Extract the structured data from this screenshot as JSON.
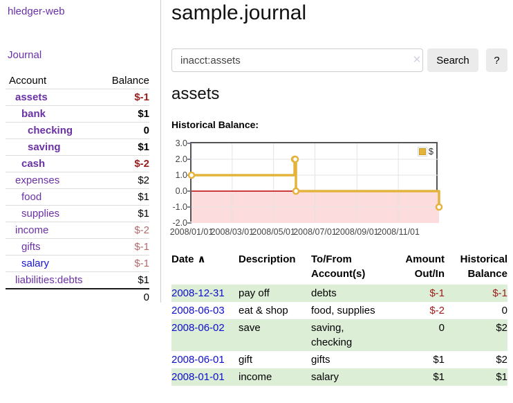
{
  "app": {
    "title": "hledger-web"
  },
  "sidebar": {
    "journal_link": "Journal",
    "table": {
      "headers": {
        "account": "Account",
        "balance": "Balance"
      },
      "accounts": [
        {
          "name": "assets",
          "balance": "$-1",
          "depth": 1
        },
        {
          "name": "bank",
          "balance": "$1",
          "depth": 2
        },
        {
          "name": "checking",
          "balance": "0",
          "depth": 3
        },
        {
          "name": "saving",
          "balance": "$1",
          "depth": 3
        },
        {
          "name": "cash",
          "balance": "$-2",
          "depth": 2
        },
        {
          "name": "expenses",
          "balance": "$2",
          "depth": 1
        },
        {
          "name": "food",
          "balance": "$1",
          "depth": 2
        },
        {
          "name": "supplies",
          "balance": "$1",
          "depth": 2
        },
        {
          "name": "income",
          "balance": "$-2",
          "depth": 1
        },
        {
          "name": "gifts",
          "balance": "$-1",
          "depth": 2
        },
        {
          "name": "salary",
          "balance": "$-1",
          "depth": 2
        },
        {
          "name": "liabilities:debts",
          "balance": "$1",
          "depth": 1
        }
      ],
      "total": "0"
    }
  },
  "main": {
    "title": "sample.journal",
    "search": {
      "value": "inacct:assets",
      "clear_icon": "✕",
      "search_button": "Search",
      "help_button": "?"
    },
    "account_heading": "assets",
    "chart_label": "Historical Balance:",
    "register": {
      "headers": {
        "date": "Date",
        "sort_icon": "∧",
        "description": "Description",
        "tofrom": "To/From\nAccount(s)",
        "amount": "Amount\nOut/In",
        "balance": "Historical\nBalance"
      },
      "rows": [
        {
          "date": "2008-12-31",
          "description": "pay off",
          "tofrom": "debts",
          "amount": "$-1",
          "balance": "$-1"
        },
        {
          "date": "2008-06-03",
          "description": "eat & shop",
          "tofrom": "food, supplies",
          "amount": "$-2",
          "balance": "0"
        },
        {
          "date": "2008-06-02",
          "description": "save",
          "tofrom": "saving,\nchecking",
          "amount": "0",
          "balance": "$2"
        },
        {
          "date": "2008-06-01",
          "description": "gift",
          "tofrom": "gifts",
          "amount": "$1",
          "balance": "$2"
        },
        {
          "date": "2008-01-01",
          "description": "income",
          "tofrom": "salary",
          "amount": "$1",
          "balance": "$1"
        }
      ]
    }
  },
  "chart_data": {
    "type": "line",
    "step": true,
    "title": "Historical Balance",
    "xlim": [
      "2008-01-01",
      "2008-12-31"
    ],
    "ylim": [
      -2,
      3
    ],
    "series": [
      {
        "name": "$",
        "color": "#e4b33c",
        "points": [
          {
            "date": "2008-01-01",
            "value": 1
          },
          {
            "date": "2008-06-01",
            "value": 2
          },
          {
            "date": "2008-06-02",
            "value": 2
          },
          {
            "date": "2008-06-03",
            "value": 0
          },
          {
            "date": "2008-12-31",
            "value": -1
          }
        ]
      }
    ],
    "x_ticks": [
      {
        "date": "2008-01-01",
        "label": "2008/01/01"
      },
      {
        "date": "2008-03-01",
        "label": "2008/03/01"
      },
      {
        "date": "2008-05-01",
        "label": "2008/05/01"
      },
      {
        "date": "2008-07-01",
        "label": "2008/07/01"
      },
      {
        "date": "2008-09-01",
        "label": "2008/09/01"
      },
      {
        "date": "2008-11-01",
        "label": "2008/11/01"
      }
    ],
    "y_ticks": [
      {
        "value": 3,
        "label": "3.0"
      },
      {
        "value": 2,
        "label": "2.0"
      },
      {
        "value": 1,
        "label": "1.0"
      },
      {
        "value": 0,
        "label": "0.0"
      },
      {
        "value": -1,
        "label": "-1.0"
      },
      {
        "value": -2,
        "label": "-2.0"
      }
    ],
    "legend": {
      "label": "$",
      "position": "top-right"
    },
    "grid": true,
    "zero_line_color": "#bb0000",
    "negative_region_fill": "#fcdcdc"
  },
  "colors": {
    "link_purple": "#6a30a5",
    "link_blue": "#1414d4",
    "date_blue": "#0d0dcc",
    "negative_strong": "#9c1b1b",
    "negative_muted": "#b26a6a",
    "row_green": "#ddeed7",
    "chart_gold": "#e4b33c",
    "chart_frame": "#545454"
  }
}
